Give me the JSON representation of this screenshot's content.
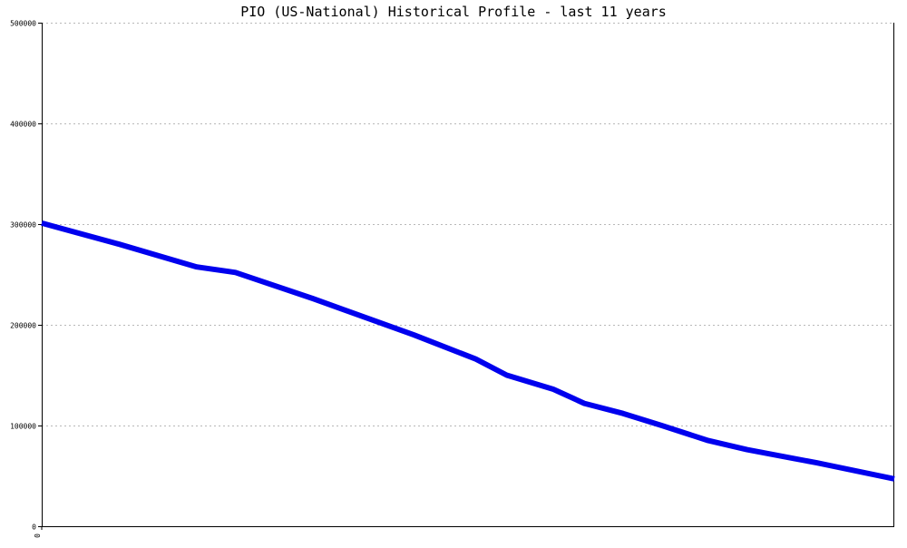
{
  "chart_data": {
    "type": "line",
    "title": "PIO (US-National) Historical Profile - last 11 years",
    "xlabel": "",
    "ylabel": "",
    "ylim": [
      0,
      500000
    ],
    "xlim": [
      0,
      11
    ],
    "y_ticks": [
      {
        "value": 0,
        "label": "0"
      },
      {
        "value": 100000,
        "label": "100000"
      },
      {
        "value": 200000,
        "label": "200000"
      },
      {
        "value": 300000,
        "label": "300000"
      },
      {
        "value": 400000,
        "label": "400000"
      },
      {
        "value": 500000,
        "label": "500000"
      }
    ],
    "x_ticks": [
      {
        "value": 0,
        "label": "0"
      }
    ],
    "grid": true,
    "series": [
      {
        "color": "#0000ee",
        "points": [
          {
            "x": 0.0,
            "y": 301000
          },
          {
            "x": 1.0,
            "y": 280000
          },
          {
            "x": 2.0,
            "y": 257500
          },
          {
            "x": 2.5,
            "y": 252000
          },
          {
            "x": 3.5,
            "y": 226000
          },
          {
            "x": 4.8,
            "y": 190000
          },
          {
            "x": 5.6,
            "y": 166000
          },
          {
            "x": 6.0,
            "y": 150000
          },
          {
            "x": 6.6,
            "y": 136000
          },
          {
            "x": 7.0,
            "y": 122000
          },
          {
            "x": 7.5,
            "y": 112000
          },
          {
            "x": 8.0,
            "y": 100000
          },
          {
            "x": 8.6,
            "y": 85000
          },
          {
            "x": 9.1,
            "y": 76000
          },
          {
            "x": 10.0,
            "y": 63000
          },
          {
            "x": 11.0,
            "y": 47000
          }
        ]
      }
    ]
  }
}
